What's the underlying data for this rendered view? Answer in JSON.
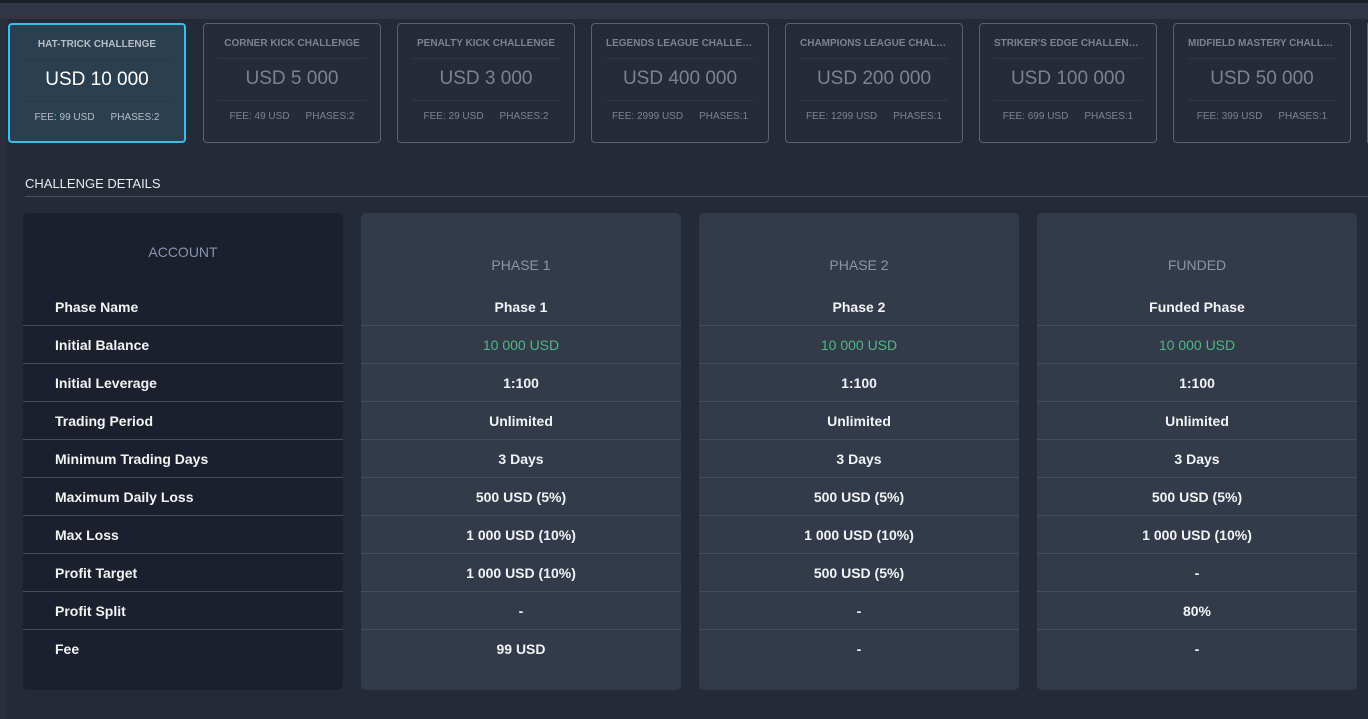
{
  "challenges": [
    {
      "name": "HAT-TRICK CHALLENGE",
      "amount": "USD 10 000",
      "fee": "FEE: 99 USD",
      "phases": "PHASES:2",
      "selected": true
    },
    {
      "name": "CORNER KICK CHALLENGE",
      "amount": "USD 5 000",
      "fee": "FEE: 49 USD",
      "phases": "PHASES:2"
    },
    {
      "name": "PENALTY KICK CHALLENGE",
      "amount": "USD 3 000",
      "fee": "FEE: 29 USD",
      "phases": "PHASES:2"
    },
    {
      "name": "LEGENDS LEAGUE CHALLENGE",
      "amount": "USD 400 000",
      "fee": "FEE: 2999 USD",
      "phases": "PHASES:1"
    },
    {
      "name": "CHAMPIONS LEAGUE CHALLENGE",
      "amount": "USD 200 000",
      "fee": "FEE: 1299 USD",
      "phases": "PHASES:1"
    },
    {
      "name": "STRIKER'S EDGE CHALLENGE",
      "amount": "USD 100 000",
      "fee": "FEE: 699 USD",
      "phases": "PHASES:1"
    },
    {
      "name": "MIDFIELD MASTERY CHALLENGE",
      "amount": "USD 50 000",
      "fee": "FEE: 399 USD",
      "phases": "PHASES:1"
    }
  ],
  "details": {
    "title": "CHALLENGE DETAILS",
    "account": {
      "header": "ACCOUNT",
      "rows": [
        "Phase Name",
        "Initial Balance",
        "Initial Leverage",
        "Trading Period",
        "Minimum Trading Days",
        "Maximum Daily Loss",
        "Max Loss",
        "Profit Target",
        "Profit Split",
        "Fee"
      ]
    },
    "columns": [
      {
        "header": "PHASE 1",
        "rows": [
          "Phase 1",
          "10 000 USD",
          "1:100",
          "Unlimited",
          "3 Days",
          "500 USD (5%)",
          "1 000 USD (10%)",
          "1 000 USD (10%)",
          "-",
          "99 USD"
        ]
      },
      {
        "header": "PHASE 2",
        "rows": [
          "Phase 2",
          "10 000 USD",
          "1:100",
          "Unlimited",
          "3 Days",
          "500 USD (5%)",
          "1 000 USD (10%)",
          "500 USD (5%)",
          "-",
          "-"
        ]
      },
      {
        "header": "FUNDED",
        "rows": [
          "Funded Phase",
          "10 000 USD",
          "1:100",
          "Unlimited",
          "3 Days",
          "500 USD (5%)",
          "1 000 USD (10%)",
          "-",
          "80%",
          "-"
        ]
      }
    ]
  },
  "colors": {
    "accent": "#3cbde6",
    "balance": "#4fb785"
  }
}
